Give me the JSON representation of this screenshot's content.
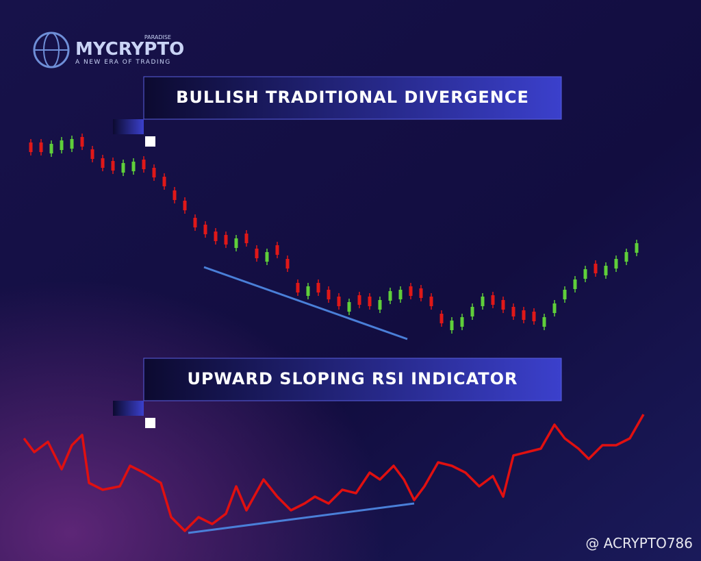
{
  "logo": {
    "name": "MYCRYPTO",
    "tag": "PARADISE",
    "slogan": "A NEW ERA OF TRADING"
  },
  "panels": [
    {
      "title": "BULLISH TRADITIONAL DIVERGENCE"
    },
    {
      "title": "UPWARD SLOPING RSI INDICATOR"
    }
  ],
  "watermark": "@ ACRYPTO786"
}
